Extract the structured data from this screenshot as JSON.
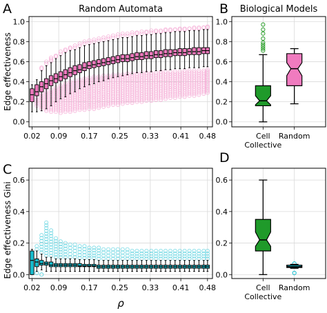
{
  "figure": {
    "panel_letters": [
      "A",
      "B",
      "C",
      "D"
    ]
  },
  "chart_data": [
    {
      "panel": "A",
      "type": "box",
      "title": "Random Automata",
      "ylabel": "Edge effectiveness",
      "xlabel": "",
      "xlim": [
        0.012,
        0.493
      ],
      "ylim": [
        -0.05,
        1.05
      ],
      "xticks": [
        0.02,
        0.09,
        0.17,
        0.25,
        0.33,
        0.41,
        0.48
      ],
      "xticklabels": [
        "0.02",
        "0.09",
        "0.17",
        "0.25",
        "0.33",
        "0.41",
        "0.48"
      ],
      "yticks": [
        0.0,
        0.2,
        0.4,
        0.6,
        0.8,
        1.0
      ],
      "yticklabels": [
        "0.0",
        "0.2",
        "0.4",
        "0.6",
        "0.8",
        "1.0"
      ],
      "grid": true,
      "notch": true,
      "colors": {
        "box": "#f07bbf",
        "outlier": "#f4a6d2",
        "median": "#000000"
      },
      "x": [
        0.02,
        0.0325,
        0.045,
        0.0575,
        0.07,
        0.0825,
        0.095,
        0.1075,
        0.12,
        0.1325,
        0.145,
        0.1575,
        0.17,
        0.1825,
        0.195,
        0.2075,
        0.22,
        0.2325,
        0.245,
        0.2575,
        0.27,
        0.2825,
        0.295,
        0.3075,
        0.32,
        0.3325,
        0.345,
        0.3575,
        0.37,
        0.3825,
        0.395,
        0.4075,
        0.42,
        0.4325,
        0.445,
        0.4575,
        0.47,
        0.48
      ],
      "q1": [
        0.2,
        0.26,
        0.3,
        0.33,
        0.36,
        0.39,
        0.41,
        0.43,
        0.45,
        0.47,
        0.49,
        0.51,
        0.53,
        0.54,
        0.55,
        0.56,
        0.57,
        0.58,
        0.59,
        0.6,
        0.6,
        0.61,
        0.62,
        0.62,
        0.63,
        0.63,
        0.64,
        0.64,
        0.65,
        0.65,
        0.66,
        0.66,
        0.66,
        0.67,
        0.67,
        0.67,
        0.68,
        0.68
      ],
      "median": [
        0.27,
        0.3,
        0.35,
        0.38,
        0.41,
        0.43,
        0.45,
        0.47,
        0.49,
        0.51,
        0.52,
        0.54,
        0.56,
        0.57,
        0.58,
        0.59,
        0.6,
        0.61,
        0.62,
        0.63,
        0.63,
        0.64,
        0.65,
        0.65,
        0.66,
        0.66,
        0.67,
        0.67,
        0.68,
        0.68,
        0.69,
        0.69,
        0.69,
        0.7,
        0.7,
        0.7,
        0.71,
        0.71
      ],
      "q3": [
        0.33,
        0.37,
        0.4,
        0.43,
        0.46,
        0.48,
        0.5,
        0.52,
        0.54,
        0.56,
        0.57,
        0.59,
        0.6,
        0.61,
        0.62,
        0.63,
        0.64,
        0.65,
        0.66,
        0.67,
        0.67,
        0.68,
        0.69,
        0.69,
        0.7,
        0.7,
        0.71,
        0.71,
        0.72,
        0.72,
        0.72,
        0.73,
        0.73,
        0.73,
        0.74,
        0.74,
        0.74,
        0.74
      ],
      "whisker_low": [
        0.1,
        0.1,
        0.11,
        0.13,
        0.16,
        0.2,
        0.23,
        0.25,
        0.28,
        0.3,
        0.33,
        0.35,
        0.37,
        0.38,
        0.4,
        0.41,
        0.43,
        0.44,
        0.45,
        0.46,
        0.47,
        0.48,
        0.49,
        0.49,
        0.5,
        0.5,
        0.51,
        0.51,
        0.52,
        0.52,
        0.53,
        0.53,
        0.53,
        0.54,
        0.54,
        0.54,
        0.55,
        0.55
      ],
      "whisker_high": [
        0.37,
        0.42,
        0.51,
        0.56,
        0.59,
        0.63,
        0.66,
        0.69,
        0.71,
        0.72,
        0.74,
        0.76,
        0.77,
        0.78,
        0.79,
        0.8,
        0.81,
        0.82,
        0.83,
        0.84,
        0.84,
        0.85,
        0.86,
        0.86,
        0.87,
        0.87,
        0.88,
        0.88,
        0.89,
        0.89,
        0.9,
        0.9,
        0.9,
        0.91,
        0.91,
        0.91,
        0.92,
        0.92
      ],
      "outlier_low_top": [
        null,
        0.24,
        0.28,
        0.3,
        0.32,
        0.34,
        0.36,
        0.38,
        0.4,
        0.41,
        0.42,
        0.43,
        0.44,
        0.45,
        0.45,
        0.46,
        0.46,
        0.47,
        0.47,
        0.47,
        0.48,
        0.48,
        0.48,
        0.49,
        0.49,
        0.49,
        0.49,
        0.5,
        0.5,
        0.5,
        0.5,
        0.5,
        0.51,
        0.51,
        0.51,
        0.51,
        0.51,
        0.52
      ],
      "outlier_low_bottom": [
        null,
        0.16,
        0.13,
        0.11,
        0.1,
        0.1,
        0.09,
        0.1,
        0.1,
        0.11,
        0.12,
        0.12,
        0.13,
        0.13,
        0.14,
        0.15,
        0.16,
        0.17,
        0.17,
        0.18,
        0.19,
        0.19,
        0.2,
        0.2,
        0.21,
        0.21,
        0.22,
        0.22,
        0.23,
        0.24,
        0.24,
        0.25,
        0.25,
        0.26,
        0.26,
        0.27,
        0.28,
        0.29
      ],
      "outlier_high": [
        null,
        null,
        0.54,
        0.6,
        0.64,
        0.66,
        0.7,
        0.72,
        0.74,
        0.76,
        0.78,
        0.8,
        0.81,
        0.82,
        0.83,
        0.84,
        0.85,
        0.86,
        0.87,
        0.88,
        0.88,
        0.89,
        0.89,
        0.9,
        0.9,
        0.91,
        0.91,
        0.91,
        0.92,
        0.92,
        0.92,
        0.93,
        0.93,
        0.93,
        0.94,
        0.94,
        0.94,
        0.95
      ]
    },
    {
      "panel": "B",
      "type": "box",
      "title": "Biological Models",
      "xlabel": "",
      "ylabel": "",
      "categories": [
        "Cell\nCollective",
        "Random"
      ],
      "ylim": [
        -0.05,
        1.05
      ],
      "yticks": [
        0.0,
        0.2,
        0.4,
        0.6,
        0.8,
        1.0
      ],
      "yticklabels": [
        "0.0",
        "0.2",
        "0.4",
        "0.6",
        "0.8",
        "1.0"
      ],
      "grid": true,
      "notch": true,
      "boxes": [
        {
          "category": "Cell Collective",
          "q1": 0.16,
          "median": 0.21,
          "q3": 0.36,
          "notch_low": 0.17,
          "notch_high": 0.26,
          "whisker_low": 0.0,
          "whisker_high": 0.67,
          "outliers": [
            0.71,
            0.73,
            0.75,
            0.77,
            0.79,
            0.83,
            0.88,
            0.92,
            0.97
          ],
          "color": "#1f9a2a",
          "outlier_color": "#2ca02c"
        },
        {
          "category": "Random",
          "q1": 0.36,
          "median": 0.53,
          "q3": 0.68,
          "notch_low": 0.46,
          "notch_high": 0.59,
          "whisker_low": 0.18,
          "whisker_high": 0.73,
          "outliers": [],
          "color": "#f07bbf",
          "outlier_color": "#f07bbf"
        }
      ]
    },
    {
      "panel": "C",
      "type": "box",
      "title": "",
      "ylabel": "Edge effectiveness Gini",
      "xlabel": "ρ",
      "xlim": [
        0.012,
        0.493
      ],
      "ylim": [
        -0.025,
        0.675
      ],
      "xticks": [
        0.02,
        0.09,
        0.17,
        0.25,
        0.33,
        0.41,
        0.48
      ],
      "xticklabels": [
        "0.02",
        "0.09",
        "0.17",
        "0.25",
        "0.33",
        "0.41",
        "0.48"
      ],
      "yticks": [
        0.0,
        0.2,
        0.4,
        0.6
      ],
      "yticklabels": [
        "0.0",
        "0.2",
        "0.4",
        "0.6"
      ],
      "grid": true,
      "notch": true,
      "colors": {
        "box": "#17becf",
        "outlier": "#62d3e0",
        "median": "#000000"
      },
      "x": [
        0.02,
        0.0325,
        0.045,
        0.0575,
        0.07,
        0.0825,
        0.095,
        0.1075,
        0.12,
        0.1325,
        0.145,
        0.1575,
        0.17,
        0.1825,
        0.195,
        0.2075,
        0.22,
        0.2325,
        0.245,
        0.2575,
        0.27,
        0.2825,
        0.295,
        0.3075,
        0.32,
        0.3325,
        0.345,
        0.3575,
        0.37,
        0.3825,
        0.395,
        0.4075,
        0.42,
        0.4325,
        0.445,
        0.4575,
        0.47,
        0.48
      ],
      "q1": [
        0.0,
        0.05,
        0.06,
        0.06,
        0.05,
        0.05,
        0.05,
        0.05,
        0.05,
        0.05,
        0.05,
        0.05,
        0.05,
        0.05,
        0.04,
        0.04,
        0.04,
        0.04,
        0.04,
        0.04,
        0.04,
        0.04,
        0.04,
        0.04,
        0.04,
        0.04,
        0.04,
        0.04,
        0.04,
        0.04,
        0.04,
        0.04,
        0.04,
        0.04,
        0.04,
        0.04,
        0.04,
        0.04
      ],
      "median": [
        0.09,
        0.08,
        0.07,
        0.07,
        0.06,
        0.06,
        0.06,
        0.06,
        0.06,
        0.06,
        0.055,
        0.055,
        0.055,
        0.055,
        0.05,
        0.05,
        0.05,
        0.05,
        0.05,
        0.05,
        0.05,
        0.05,
        0.05,
        0.05,
        0.05,
        0.05,
        0.05,
        0.05,
        0.05,
        0.05,
        0.05,
        0.05,
        0.05,
        0.05,
        0.05,
        0.05,
        0.05,
        0.05
      ],
      "q3": [
        0.15,
        0.1,
        0.09,
        0.08,
        0.08,
        0.07,
        0.07,
        0.07,
        0.07,
        0.07,
        0.07,
        0.065,
        0.065,
        0.065,
        0.06,
        0.06,
        0.06,
        0.06,
        0.06,
        0.06,
        0.06,
        0.06,
        0.06,
        0.06,
        0.06,
        0.06,
        0.06,
        0.06,
        0.06,
        0.06,
        0.06,
        0.06,
        0.06,
        0.06,
        0.06,
        0.06,
        0.06,
        0.06
      ],
      "whisker_low": [
        0.0,
        0.02,
        0.03,
        0.02,
        0.02,
        0.02,
        0.02,
        0.02,
        0.02,
        0.02,
        0.02,
        0.02,
        0.02,
        0.02,
        0.02,
        0.02,
        0.02,
        0.02,
        0.02,
        0.02,
        0.02,
        0.02,
        0.02,
        0.02,
        0.02,
        0.02,
        0.02,
        0.02,
        0.02,
        0.02,
        0.02,
        0.02,
        0.02,
        0.02,
        0.02,
        0.02,
        0.02,
        0.02
      ],
      "whisker_high": [
        0.16,
        0.15,
        0.13,
        0.11,
        0.11,
        0.1,
        0.1,
        0.1,
        0.1,
        0.1,
        0.095,
        0.095,
        0.095,
        0.095,
        0.09,
        0.09,
        0.09,
        0.09,
        0.09,
        0.09,
        0.09,
        0.09,
        0.09,
        0.09,
        0.09,
        0.09,
        0.09,
        0.09,
        0.09,
        0.09,
        0.09,
        0.09,
        0.09,
        0.09,
        0.09,
        0.09,
        0.09,
        0.09
      ],
      "outlier_high_bottom": [
        null,
        0.16,
        0.14,
        0.12,
        0.12,
        0.11,
        0.11,
        0.11,
        0.11,
        0.11,
        0.105,
        0.105,
        0.105,
        0.105,
        0.1,
        0.1,
        0.1,
        0.1,
        0.1,
        0.1,
        0.1,
        0.1,
        0.1,
        0.1,
        0.1,
        0.1,
        0.1,
        0.1,
        0.1,
        0.1,
        0.1,
        0.1,
        0.1,
        0.1,
        0.1,
        0.1,
        0.1,
        0.1
      ],
      "outlier_high_top": [
        null,
        0.18,
        0.25,
        0.33,
        0.28,
        0.23,
        0.21,
        0.2,
        0.19,
        0.19,
        0.18,
        0.18,
        0.17,
        0.17,
        0.17,
        0.16,
        0.16,
        0.16,
        0.16,
        0.16,
        0.16,
        0.15,
        0.15,
        0.15,
        0.15,
        0.15,
        0.15,
        0.15,
        0.15,
        0.15,
        0.15,
        0.15,
        0.15,
        0.15,
        0.15,
        0.15,
        0.15,
        0.15
      ],
      "outlier_low": [
        null,
        0.01,
        0.0,
        null,
        null,
        null,
        null,
        null,
        null,
        null,
        null,
        null,
        null,
        null,
        null,
        null,
        null,
        null,
        null,
        null,
        null,
        null,
        null,
        null,
        null,
        null,
        null,
        null,
        null,
        null,
        null,
        null,
        null,
        null,
        null,
        null,
        null,
        null
      ]
    },
    {
      "panel": "D",
      "type": "box",
      "title": "",
      "xlabel": "",
      "ylabel": "",
      "categories": [
        "Cell\nCollective",
        "Random"
      ],
      "ylim": [
        -0.025,
        0.675
      ],
      "yticks": [
        0.0,
        0.2,
        0.4,
        0.6
      ],
      "yticklabels": [
        "0.0",
        "0.2",
        "0.4",
        "0.6"
      ],
      "grid": true,
      "notch": true,
      "boxes": [
        {
          "category": "Cell Collective",
          "q1": 0.15,
          "median": 0.22,
          "q3": 0.35,
          "notch_low": 0.18,
          "notch_high": 0.27,
          "whisker_low": 0.0,
          "whisker_high": 0.6,
          "outliers": [],
          "color": "#1f9a2a",
          "outlier_color": "#2ca02c"
        },
        {
          "category": "Random",
          "q1": 0.045,
          "median": 0.05,
          "q3": 0.06,
          "notch_low": 0.048,
          "notch_high": 0.053,
          "whisker_low": 0.04,
          "whisker_high": 0.065,
          "outliers": [
            0.07,
            0.01
          ],
          "color": "#17becf",
          "outlier_color": "#17becf"
        }
      ]
    }
  ]
}
